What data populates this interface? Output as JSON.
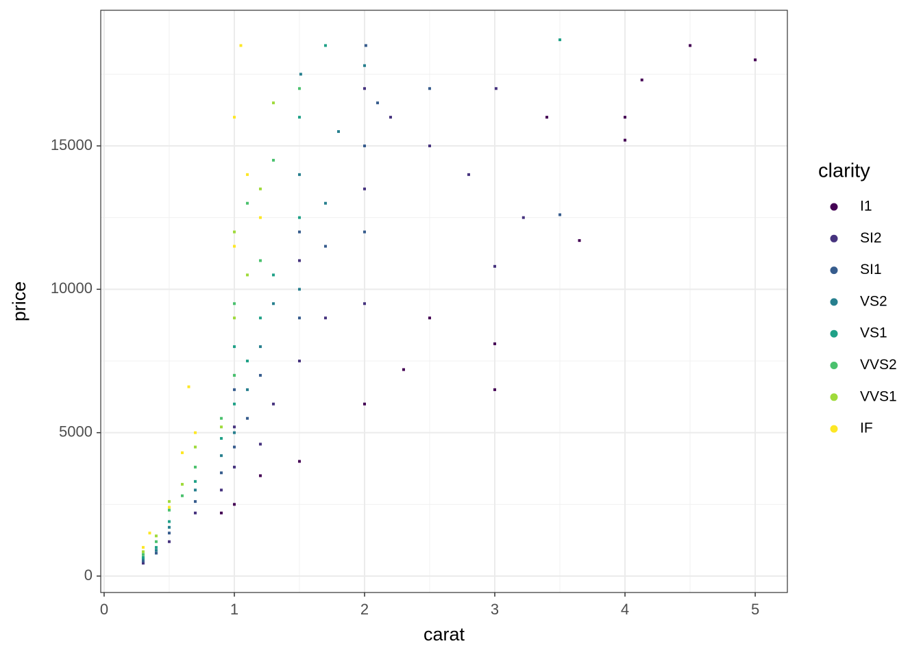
{
  "chart_data": {
    "type": "scatter",
    "x_label": "carat",
    "y_label": "price",
    "xlim": [
      -0.026,
      5.247
    ],
    "ylim": [
      -573,
      19729
    ],
    "xticks": [
      0,
      1,
      2,
      3,
      4,
      5
    ],
    "yticks": [
      0,
      5000,
      10000,
      15000
    ],
    "grid": true,
    "legend_title": "clarity",
    "legend_position": "right",
    "series": [
      {
        "name": "I1",
        "color": "#440154",
        "x": [
          1.0,
          1.5,
          2.0,
          2.5,
          3.0,
          3.0,
          4.0,
          4.5,
          5.0,
          3.65,
          3.4,
          2.3,
          1.2,
          0.9,
          4.13,
          4.0
        ],
        "values": [
          2500,
          4000,
          6000,
          9000,
          8100,
          6500,
          15200,
          18500,
          18000,
          11700,
          16000,
          7200,
          3500,
          2200,
          17300,
          16000
        ]
      },
      {
        "name": "SI2",
        "color": "#46337E",
        "x": [
          0.3,
          0.5,
          0.7,
          0.9,
          1.0,
          1.0,
          1.2,
          1.5,
          1.5,
          2.0,
          2.0,
          2.2,
          2.5,
          2.8,
          3.0,
          3.01,
          1.7,
          2.0,
          1.3,
          3.22
        ],
        "values": [
          450,
          1200,
          2200,
          3000,
          3800,
          5200,
          4600,
          7500,
          11000,
          13500,
          17000,
          16000,
          15000,
          14000,
          10800,
          17000,
          9000,
          9500,
          6000,
          12500
        ]
      },
      {
        "name": "SI1",
        "color": "#365C8D",
        "x": [
          0.3,
          0.4,
          0.5,
          0.7,
          0.9,
          1.0,
          1.0,
          1.1,
          1.5,
          1.5,
          1.7,
          2.0,
          2.01,
          2.0,
          2.1,
          1.2,
          2.5,
          3.5
        ],
        "values": [
          520,
          800,
          1500,
          2600,
          3600,
          4500,
          6500,
          5500,
          9000,
          12000,
          11500,
          15000,
          18500,
          12000,
          16500,
          7000,
          17000,
          12600
        ]
      },
      {
        "name": "VS2",
        "color": "#277F8E",
        "x": [
          0.3,
          0.4,
          0.5,
          0.7,
          0.9,
          1.0,
          1.0,
          1.1,
          1.2,
          1.5,
          1.5,
          1.7,
          1.51,
          2.0,
          1.8,
          1.3
        ],
        "values": [
          600,
          900,
          1700,
          3000,
          4200,
          5000,
          7000,
          6500,
          8000,
          10000,
          14000,
          13000,
          17500,
          17800,
          15500,
          9500
        ]
      },
      {
        "name": "VS1",
        "color": "#1FA187",
        "x": [
          0.3,
          0.4,
          0.5,
          0.7,
          0.9,
          1.0,
          1.0,
          1.2,
          1.5,
          1.5,
          1.7,
          1.3,
          1.1,
          3.5
        ],
        "values": [
          650,
          1000,
          1900,
          3300,
          4800,
          6000,
          8000,
          9000,
          12500,
          16000,
          18500,
          10500,
          7500,
          18700
        ]
      },
      {
        "name": "VVS2",
        "color": "#4AC16D",
        "x": [
          0.3,
          0.4,
          0.5,
          0.6,
          0.7,
          0.9,
          1.0,
          1.0,
          1.2,
          1.1,
          1.5,
          1.3
        ],
        "values": [
          750,
          1200,
          2300,
          2800,
          3800,
          5500,
          7000,
          9500,
          11000,
          13000,
          17000,
          14500
        ]
      },
      {
        "name": "VVS1",
        "color": "#9FDA3A",
        "x": [
          0.3,
          0.4,
          0.5,
          0.6,
          0.7,
          0.9,
          1.0,
          1.0,
          1.1,
          1.2,
          1.3
        ],
        "values": [
          850,
          1400,
          2600,
          3200,
          4500,
          5200,
          9000,
          12000,
          10500,
          13500,
          16500
        ]
      },
      {
        "name": "IF",
        "color": "#FDE725",
        "x": [
          0.3,
          0.35,
          0.5,
          0.6,
          0.7,
          1.0,
          1.0,
          1.1,
          1.2,
          1.05,
          0.65
        ],
        "values": [
          1000,
          1500,
          2400,
          4300,
          5000,
          11500,
          16000,
          14000,
          12500,
          18500,
          6600
        ]
      }
    ]
  }
}
